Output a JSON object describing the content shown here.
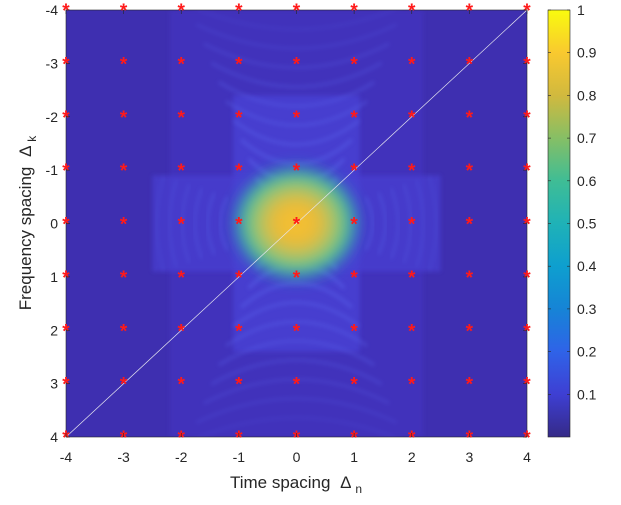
{
  "chart_data": {
    "type": "heatmap",
    "title": "",
    "xlabel": {
      "text": "Time spacing",
      "symbol": "Δ",
      "subscript": "n"
    },
    "ylabel": {
      "text": "Frequency spacing",
      "symbol": "Δ",
      "subscript": "k"
    },
    "x_ticks": [
      "-4",
      "-3",
      "-2",
      "-1",
      "0",
      "1",
      "2",
      "3",
      "4"
    ],
    "y_ticks": [
      "-4",
      "-3",
      "-2",
      "-1",
      "0",
      "1",
      "2",
      "3",
      "4"
    ],
    "xlim": [
      -4,
      4
    ],
    "ylim": [
      -4,
      4
    ],
    "y_axis_direction": "reversed (-4 at top, 4 at bottom)",
    "colormap": "parula",
    "color_range": [
      0,
      1
    ],
    "colorbar_ticks": [
      "0.1",
      "0.2",
      "0.3",
      "0.4",
      "0.5",
      "0.6",
      "0.7",
      "0.8",
      "0.9",
      "1"
    ],
    "peak": {
      "x": 0,
      "y": 0,
      "value": 1
    },
    "background_value": 0.02,
    "marker_style": "red asterisk",
    "marker_color": "#ff1a1a",
    "marker_grid": {
      "x_values": [
        -4,
        -3,
        -2,
        -1,
        0,
        1,
        2,
        3,
        4
      ],
      "y_values": [
        -4,
        -3,
        -2,
        -1,
        0,
        1,
        2,
        3,
        4
      ]
    },
    "diagonal_line": {
      "from": [
        -4,
        4
      ],
      "to": [
        4,
        -4
      ],
      "color": "#e6e6f0"
    }
  }
}
